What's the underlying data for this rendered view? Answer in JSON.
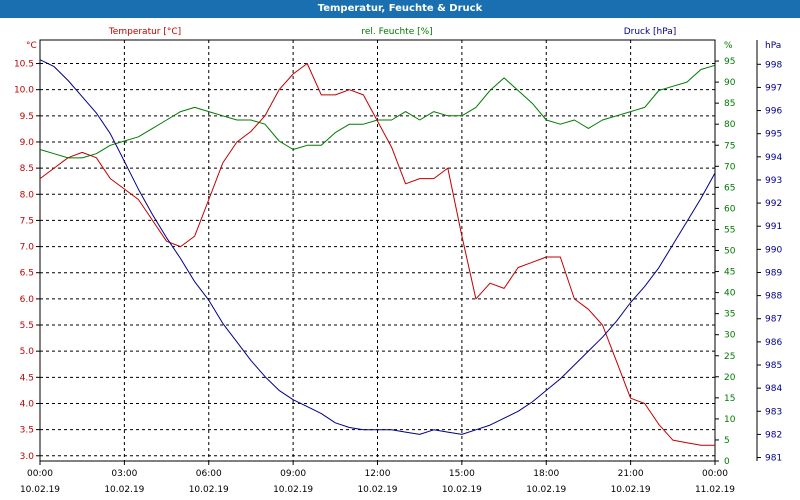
{
  "chart_data": {
    "type": "line",
    "title": "Temperatur, Feuchte & Druck",
    "x_ticks": [
      {
        "time": "00:00",
        "date": "10.02.19"
      },
      {
        "time": "03:00",
        "date": "10.02.19"
      },
      {
        "time": "06:00",
        "date": "10.02.19"
      },
      {
        "time": "09:00",
        "date": "10.02.19"
      },
      {
        "time": "12:00",
        "date": "10.02.19"
      },
      {
        "time": "15:00",
        "date": "10.02.19"
      },
      {
        "time": "18:00",
        "date": "10.02.19"
      },
      {
        "time": "21:00",
        "date": "10.02.19"
      },
      {
        "time": "00:00",
        "date": "11.02.19"
      }
    ],
    "xlim": [
      0,
      24
    ],
    "axes": {
      "temperature": {
        "unit_label": "°C",
        "ylim": [
          2.9,
          10.95
        ],
        "ticks": [
          "3.0",
          "3.5",
          "4.0",
          "4.5",
          "5.0",
          "5.5",
          "6.0",
          "6.5",
          "7.0",
          "7.5",
          "8.0",
          "8.5",
          "9.0",
          "9.5",
          "10.0",
          "10.5"
        ],
        "color": "#c00000"
      },
      "humidity": {
        "unit_label": "%",
        "ylim": [
          0,
          100
        ],
        "ticks": [
          "0",
          "5",
          "10",
          "15",
          "20",
          "25",
          "30",
          "35",
          "40",
          "45",
          "50",
          "55",
          "60",
          "65",
          "70",
          "75",
          "80",
          "85",
          "90",
          "95"
        ],
        "color": "#007a00"
      },
      "pressure": {
        "unit_label": "hPa",
        "ylim": [
          980.85,
          999.05
        ],
        "ticks": [
          "981",
          "982",
          "983",
          "984",
          "985",
          "986",
          "987",
          "988",
          "989",
          "990",
          "991",
          "992",
          "993",
          "994",
          "995",
          "996",
          "997",
          "998"
        ],
        "color": "#00008b"
      }
    },
    "legend": [
      {
        "label": "Temperatur [°C]",
        "color": "#c00000"
      },
      {
        "label": "rel. Feuchte [%]",
        "color": "#007a00"
      },
      {
        "label": "Druck [hPa]",
        "color": "#00008b"
      }
    ],
    "series": [
      {
        "name": "Temperatur [°C]",
        "axis": "temperature",
        "color": "#c00000",
        "x": [
          0,
          0.5,
          1,
          1.5,
          2,
          2.5,
          3,
          3.5,
          4,
          4.5,
          5,
          5.5,
          6,
          6.5,
          7,
          7.5,
          8,
          8.5,
          9,
          9.5,
          10,
          10.5,
          11,
          11.5,
          12,
          12.5,
          13,
          13.5,
          14,
          14.5,
          15,
          15.5,
          16,
          16.5,
          17,
          17.5,
          18,
          18.5,
          19,
          19.5,
          20,
          20.5,
          21,
          21.5,
          22,
          22.5,
          23,
          23.5,
          24
        ],
        "values": [
          8.3,
          8.5,
          8.7,
          8.8,
          8.7,
          8.3,
          8.1,
          7.9,
          7.5,
          7.1,
          7.0,
          7.2,
          7.9,
          8.6,
          9.0,
          9.2,
          9.5,
          10.0,
          10.3,
          10.5,
          9.9,
          9.9,
          10.0,
          9.9,
          9.4,
          8.9,
          8.2,
          8.3,
          8.3,
          8.5,
          7.2,
          6.0,
          6.3,
          6.2,
          6.6,
          6.7,
          6.8,
          6.8,
          6.0,
          5.8,
          5.5,
          4.8,
          4.1,
          4.0,
          3.6,
          3.3,
          3.25,
          3.2,
          3.2
        ]
      },
      {
        "name": "rel. Feuchte [%]",
        "axis": "humidity",
        "color": "#007a00",
        "x": [
          0,
          0.5,
          1,
          1.5,
          2,
          2.5,
          3,
          3.5,
          4,
          4.5,
          5,
          5.5,
          6,
          6.5,
          7,
          7.5,
          8,
          8.5,
          9,
          9.5,
          10,
          10.5,
          11,
          11.5,
          12,
          12.5,
          13,
          13.5,
          14,
          14.5,
          15,
          15.5,
          16,
          16.5,
          17,
          17.5,
          18,
          18.5,
          19,
          19.5,
          20,
          20.5,
          21,
          21.5,
          22,
          22.5,
          23,
          23.5,
          24
        ],
        "values": [
          74,
          73,
          72,
          72,
          73,
          75,
          76,
          77,
          79,
          81,
          83,
          84,
          83,
          82,
          81,
          81,
          80,
          76,
          74,
          75,
          75,
          78,
          80,
          80,
          81,
          81,
          83,
          81,
          83,
          82,
          82,
          84,
          88,
          91,
          88,
          85,
          81,
          80,
          81,
          79,
          81,
          82,
          83,
          84,
          88,
          89,
          90,
          93,
          94
        ]
      },
      {
        "name": "Druck [hPa]",
        "axis": "pressure",
        "color": "#00008b",
        "x": [
          0,
          0.5,
          1,
          1.5,
          2,
          2.5,
          3,
          3.5,
          4,
          4.5,
          5,
          5.5,
          6,
          6.5,
          7,
          7.5,
          8,
          8.5,
          9,
          9.5,
          10,
          10.5,
          11,
          11.5,
          12,
          12.5,
          13,
          13.5,
          14,
          14.5,
          15,
          15.5,
          16,
          16.5,
          17,
          17.5,
          18,
          18.5,
          19,
          19.5,
          20,
          20.5,
          21,
          21.5,
          22,
          22.5,
          23,
          23.5,
          24
        ],
        "values": [
          998.2,
          997.9,
          997.3,
          996.6,
          995.9,
          995.0,
          993.8,
          992.6,
          991.5,
          990.5,
          989.6,
          988.6,
          987.8,
          986.8,
          986.0,
          985.2,
          984.5,
          983.9,
          983.5,
          983.2,
          982.9,
          982.5,
          982.3,
          982.2,
          982.2,
          982.2,
          982.1,
          982.0,
          982.2,
          982.1,
          982.0,
          982.2,
          982.4,
          982.7,
          983.0,
          983.4,
          983.9,
          984.4,
          985.0,
          985.6,
          986.2,
          986.9,
          987.7,
          988.4,
          989.2,
          990.2,
          991.2,
          992.2,
          993.3
        ]
      }
    ]
  }
}
